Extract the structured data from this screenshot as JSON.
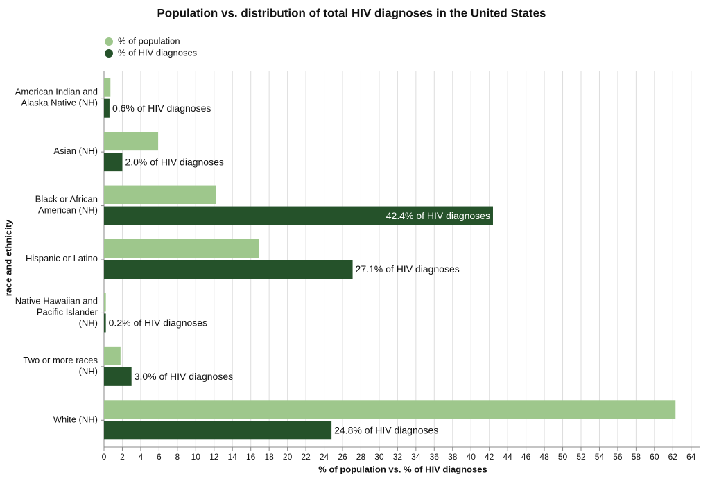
{
  "chart_data": {
    "type": "bar",
    "orientation": "horizontal",
    "title": "Population vs. distribution of total HIV diagnoses in the United States",
    "x_label": "% of population vs. % of HIV diagnoses",
    "y_label": "race and ethnicity",
    "categories": [
      [
        "American Indian and",
        "Alaska Native (NH)"
      ],
      [
        "Asian (NH)"
      ],
      [
        "Black or African",
        "American (NH)"
      ],
      [
        "Hispanic or Latino"
      ],
      [
        "Native Hawaiian and",
        "Pacific Islander",
        "(NH)"
      ],
      [
        "Two or more races",
        "(NH)"
      ],
      [
        "White (NH)"
      ]
    ],
    "series": [
      {
        "name": "% of population",
        "color": "#9ec78c",
        "values": [
          0.7,
          5.9,
          12.2,
          16.9,
          0.2,
          1.8,
          62.3
        ]
      },
      {
        "name": "% of HIV diagnoses",
        "color": "#25522a",
        "values": [
          0.6,
          2.0,
          42.4,
          27.1,
          0.2,
          3.0,
          24.8
        ],
        "value_labels": [
          "0.6% of HIV diagnoses",
          "2.0% of HIV diagnoses",
          "42.4% of HIV diagnoses",
          "27.1% of HIV diagnoses",
          "0.2% of HIV diagnoses",
          "3.0% of HIV diagnoses",
          "24.8% of HIV diagnoses"
        ]
      }
    ],
    "xlim": [
      0,
      65
    ],
    "xticks": [
      0,
      2,
      4,
      6,
      8,
      10,
      12,
      14,
      16,
      18,
      20,
      22,
      24,
      26,
      28,
      30,
      32,
      34,
      36,
      38,
      40,
      42,
      44,
      46,
      48,
      50,
      52,
      54,
      56,
      58,
      60,
      62,
      64
    ],
    "grid": true,
    "legend": "top-left"
  }
}
